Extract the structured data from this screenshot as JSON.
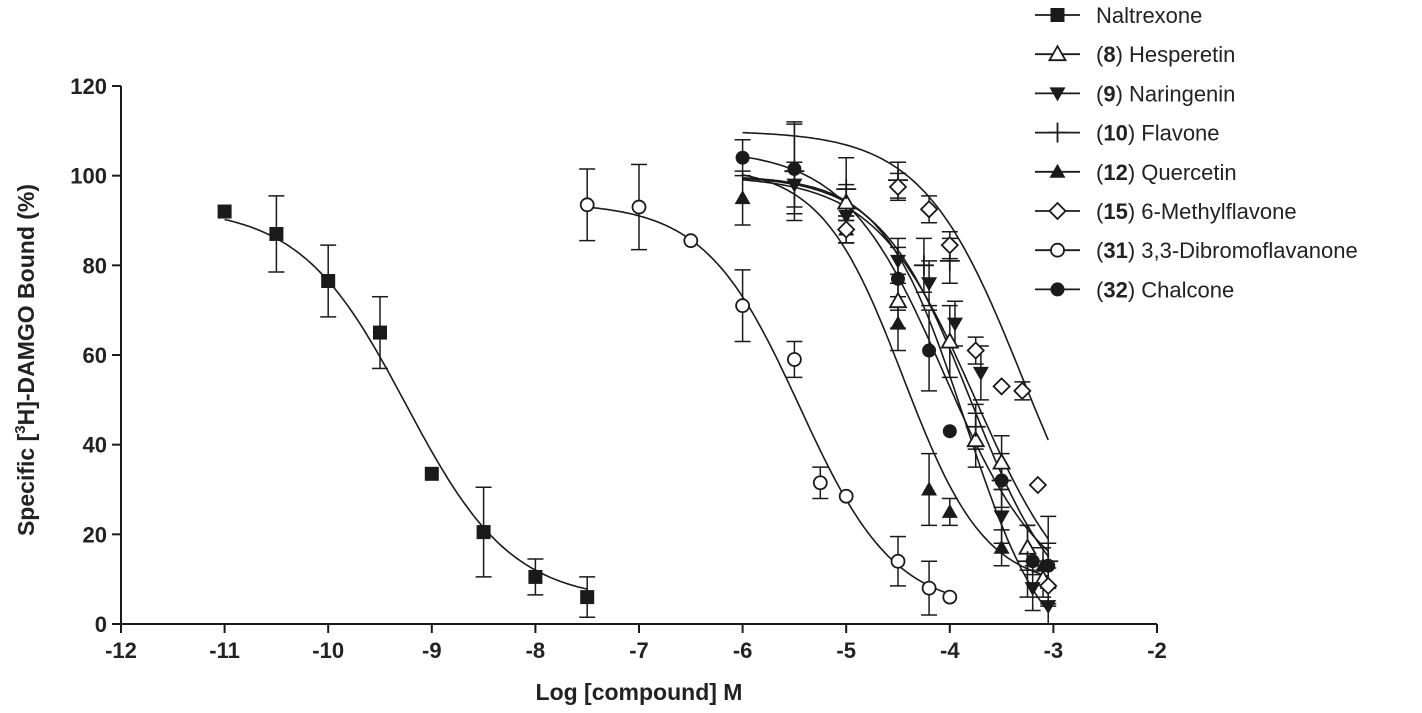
{
  "chart_data": {
    "type": "scatter",
    "title": "",
    "xlabel": "Log [compound] M",
    "ylabel_parts": [
      "Specific [",
      "3",
      "H]-DAMGO Bound (%)"
    ],
    "xlim": [
      -12,
      -2
    ],
    "ylim": [
      0,
      120
    ],
    "x_ticks": [
      -12,
      -11,
      -10,
      -9,
      -8,
      -7,
      -6,
      -5,
      -4,
      -3,
      -2
    ],
    "y_ticks": [
      0,
      20,
      40,
      60,
      80,
      100,
      120
    ],
    "x_tick_labels": [
      "-12",
      "-11",
      "-10",
      "-9",
      "-8",
      "-7",
      "-6",
      "-5",
      "-4",
      "-3",
      "-2"
    ],
    "y_tick_labels": [
      "0",
      "20",
      "40",
      "60",
      "80",
      "100",
      "120"
    ],
    "legend_position": "top-right",
    "series": [
      {
        "name": "Naltrexone",
        "legend_number": "",
        "legend_label": "Naltrexone",
        "marker": "square-filled",
        "curve": {
          "top": 93,
          "bottom": 5,
          "logIC50": -9.25,
          "hill": 0.85,
          "x_from": -11,
          "x_to": -7.5
        },
        "points": [
          {
            "x": -11,
            "y": 92,
            "err": 0
          },
          {
            "x": -10.5,
            "y": 87,
            "err": 8.5
          },
          {
            "x": -10,
            "y": 76.5,
            "err": 8
          },
          {
            "x": -9.5,
            "y": 65,
            "err": 8
          },
          {
            "x": -9,
            "y": 33.5,
            "err": 0
          },
          {
            "x": -8.5,
            "y": 20.5,
            "err": 10
          },
          {
            "x": -8,
            "y": 10.5,
            "err": 4
          },
          {
            "x": -7.5,
            "y": 6,
            "err": 4.5
          }
        ]
      },
      {
        "name": "(8) Hesperetin",
        "legend_number": "8",
        "legend_label": "Hesperetin",
        "marker": "triangle-open",
        "curve": {
          "top": 100,
          "bottom": 0,
          "logIC50": -3.75,
          "hill": 0.9,
          "x_from": -6,
          "x_to": -3.05
        },
        "points": [
          {
            "x": -5,
            "y": 94,
            "err": 4
          },
          {
            "x": -4.5,
            "y": 72,
            "err": 6
          },
          {
            "x": -4,
            "y": 63,
            "err": 8
          },
          {
            "x": -3.75,
            "y": 41,
            "err": 6
          },
          {
            "x": -3.5,
            "y": 36,
            "err": 6
          },
          {
            "x": -3.25,
            "y": 17,
            "err": 5
          },
          {
            "x": -3.1,
            "y": 10,
            "err": 4
          }
        ]
      },
      {
        "name": "(9) Naringenin",
        "legend_number": "9",
        "legend_label": "Naringenin",
        "marker": "triangle-down-filled",
        "curve": {
          "top": 100,
          "bottom": 0,
          "logIC50": -3.8,
          "hill": 1.0,
          "x_from": -6,
          "x_to": -3.05
        },
        "points": [
          {
            "x": -5.5,
            "y": 98,
            "err": 5
          },
          {
            "x": -5,
            "y": 91,
            "err": 6
          },
          {
            "x": -4.5,
            "y": 81,
            "err": 5
          },
          {
            "x": -4.2,
            "y": 76,
            "err": 5
          },
          {
            "x": -3.95,
            "y": 67,
            "err": 5
          },
          {
            "x": -3.7,
            "y": 56,
            "err": 6
          },
          {
            "x": -3.5,
            "y": 24,
            "err": 6
          },
          {
            "x": -3.2,
            "y": 8,
            "err": 5
          },
          {
            "x": -3.05,
            "y": 4,
            "err": 4
          }
        ]
      },
      {
        "name": "(10) Flavone",
        "legend_number": "10",
        "legend_label": "Flavone",
        "marker": "plus",
        "curve": {
          "top": 100,
          "bottom": -10,
          "logIC50": -3.85,
          "hill": 1.1,
          "x_from": -6,
          "x_to": -3.05
        },
        "points": [
          {
            "x": -5.5,
            "y": 101,
            "err": 11
          },
          {
            "x": -5,
            "y": 97,
            "err": 7
          },
          {
            "x": -4.5,
            "y": 99,
            "err": 4
          },
          {
            "x": -4.25,
            "y": 80,
            "err": 6
          },
          {
            "x": -4,
            "y": 81,
            "err": 5
          },
          {
            "x": -3.75,
            "y": 44,
            "err": 5
          },
          {
            "x": -3.5,
            "y": 32,
            "err": 6
          },
          {
            "x": -3.25,
            "y": 14,
            "err": 8
          },
          {
            "x": -3.05,
            "y": 14,
            "err": 10
          }
        ]
      },
      {
        "name": "(12) Quercetin",
        "legend_number": "12",
        "legend_label": "Quercetin",
        "marker": "triangle-up-filled",
        "curve": {
          "top": 102,
          "bottom": 8,
          "logIC50": -4.45,
          "hill": 1.1,
          "x_from": -6,
          "x_to": -3.05
        },
        "points": [
          {
            "x": -6,
            "y": 95,
            "err": 6
          },
          {
            "x": -5,
            "y": 88,
            "err": 3
          },
          {
            "x": -4.5,
            "y": 67,
            "err": 6
          },
          {
            "x": -4.2,
            "y": 30,
            "err": 8
          },
          {
            "x": -4,
            "y": 25,
            "err": 3
          },
          {
            "x": -3.5,
            "y": 17,
            "err": 4
          },
          {
            "x": -3.1,
            "y": 13,
            "err": 4
          }
        ]
      },
      {
        "name": "(15) 6-Methylflavone",
        "legend_number": "15",
        "legend_label": "6-Methylflavone",
        "marker": "diamond-open",
        "curve": {
          "top": 110,
          "bottom": 0,
          "logIC50": -3.3,
          "hill": 0.9,
          "x_from": -6,
          "x_to": -3.05
        },
        "points": [
          {
            "x": -5,
            "y": 88,
            "err": 3
          },
          {
            "x": -4.5,
            "y": 97.5,
            "err": 3
          },
          {
            "x": -4.2,
            "y": 92.5,
            "err": 3
          },
          {
            "x": -4,
            "y": 84.5,
            "err": 3
          },
          {
            "x": -3.75,
            "y": 61,
            "err": 3
          },
          {
            "x": -3.5,
            "y": 53,
            "err": 0
          },
          {
            "x": -3.3,
            "y": 52,
            "err": 2
          },
          {
            "x": -3.15,
            "y": 31,
            "err": 0
          },
          {
            "x": -3.05,
            "y": 8.5,
            "err": 4
          }
        ]
      },
      {
        "name": "(31) 3,3-Dibromoflavanone",
        "legend_number": "31",
        "legend_label": "3,3-Dibromoflavanone",
        "marker": "circle-open",
        "curve": {
          "top": 94,
          "bottom": 3,
          "logIC50": -5.45,
          "hill": 0.95,
          "x_from": -7.5,
          "x_to": -4
        },
        "points": [
          {
            "x": -7.5,
            "y": 93.5,
            "err": 8
          },
          {
            "x": -7,
            "y": 93,
            "err": 9.5
          },
          {
            "x": -6.5,
            "y": 85.5,
            "err": 0
          },
          {
            "x": -6,
            "y": 71,
            "err": 8
          },
          {
            "x": -5.5,
            "y": 59,
            "err": 4
          },
          {
            "x": -5.25,
            "y": 31.5,
            "err": 3.5
          },
          {
            "x": -5,
            "y": 28.5,
            "err": 0
          },
          {
            "x": -4.5,
            "y": 14,
            "err": 5.5
          },
          {
            "x": -4.2,
            "y": 8,
            "err": 6
          },
          {
            "x": -4,
            "y": 6,
            "err": 0
          }
        ]
      },
      {
        "name": "(32) Chalcone",
        "legend_number": "32",
        "legend_label": "Chalcone",
        "marker": "circle-filled",
        "curve": {
          "top": 106,
          "bottom": 5,
          "logIC50": -4.05,
          "hill": 0.9,
          "x_from": -6,
          "x_to": -3.05
        },
        "points": [
          {
            "x": -6,
            "y": 104,
            "err": 4
          },
          {
            "x": -5.5,
            "y": 101.5,
            "err": 10
          },
          {
            "x": -4.5,
            "y": 77,
            "err": 7
          },
          {
            "x": -4.2,
            "y": 61,
            "err": 9
          },
          {
            "x": -4,
            "y": 43,
            "err": 0
          },
          {
            "x": -3.5,
            "y": 32,
            "err": 0
          },
          {
            "x": -3.2,
            "y": 14,
            "err": 3
          },
          {
            "x": -3.05,
            "y": 13,
            "err": 5
          }
        ]
      }
    ]
  }
}
